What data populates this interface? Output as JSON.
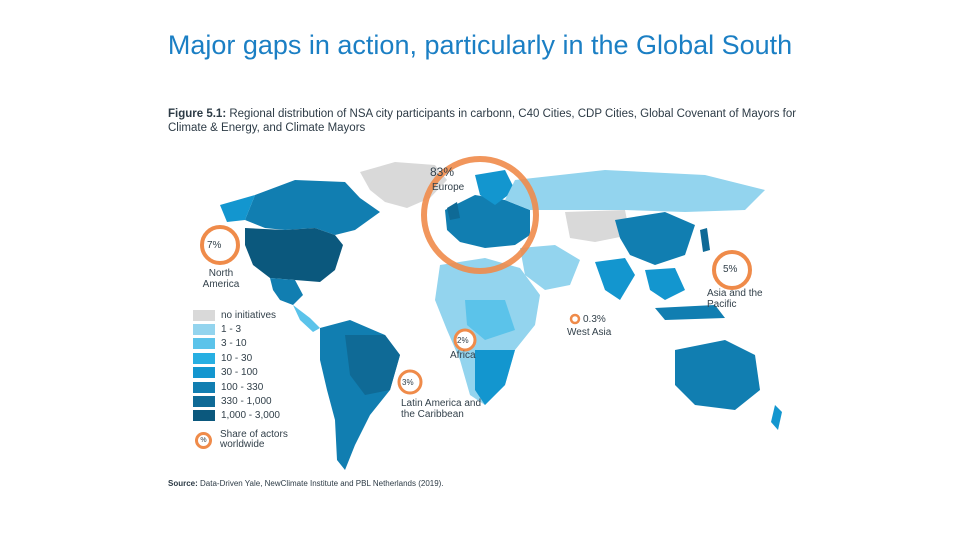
{
  "slide": {
    "title": "Major gaps in action, particularly in the Global South"
  },
  "figure": {
    "label": "Figure 5.1:",
    "caption": "Regional distribution of NSA city participants in carbonn, C40 Cities, CDP Cities, Global Covenant of Mayors for Climate & Energy, and Climate Mayors"
  },
  "regions": [
    {
      "share": "83%",
      "name": "Europe"
    },
    {
      "share": "7%",
      "name": "North America"
    },
    {
      "share": "5%",
      "name": "Asia and the Pacific"
    },
    {
      "share": "0.3%",
      "name": "West Asia"
    },
    {
      "share": "2%",
      "name": "Africa"
    },
    {
      "share": "3%",
      "name": "Latin America and the Caribbean"
    }
  ],
  "legend": {
    "items": [
      {
        "label": "no initiatives",
        "color": "#d9d9d9"
      },
      {
        "label": "1 - 3",
        "color": "#93d4ee"
      },
      {
        "label": "3 - 10",
        "color": "#5bc3ea"
      },
      {
        "label": "10 - 30",
        "color": "#27afe2"
      },
      {
        "label": "30 - 100",
        "color": "#1396cf"
      },
      {
        "label": "100 - 330",
        "color": "#117eb1"
      },
      {
        "label": "330 - 1,000",
        "color": "#0f6a96"
      },
      {
        "label": "1,000 - 3,000",
        "color": "#0b587d"
      }
    ],
    "share_icon_text": "%",
    "share_label": "Share of actors worldwide"
  },
  "source": {
    "label": "Source:",
    "text": "Data-Driven Yale, NewClimate Institute and PBL Netherlands (2019)."
  },
  "colors": {
    "title": "#1b7fc4",
    "highlight_ring": "#ef8b4a"
  }
}
